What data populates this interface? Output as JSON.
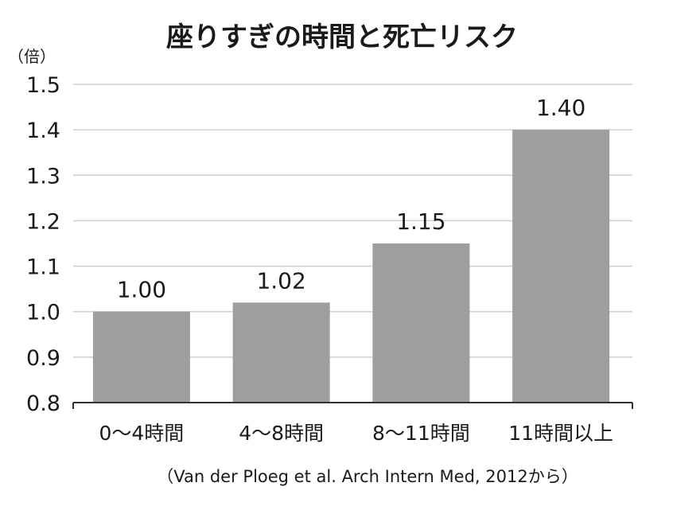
{
  "chart_data": {
    "type": "bar",
    "title": "座りすぎの時間と死亡リスク",
    "unit_label": "（倍）",
    "categories": [
      "0～4時間",
      "4～8時間",
      "8～11時間",
      "11時間以上"
    ],
    "values": [
      1.0,
      1.02,
      1.15,
      1.4
    ],
    "value_labels": [
      "1.00",
      "1.02",
      "1.15",
      "1.40"
    ],
    "ylim": [
      0.8,
      1.5
    ],
    "yticks": [
      "0.8",
      "0.9",
      "1.0",
      "1.1",
      "1.2",
      "1.3",
      "1.4",
      "1.5"
    ],
    "grid": true,
    "source": "（Van der Ploeg et al. Arch Intern Med, 2012から）",
    "colors": {
      "bar": "#9d9e9d",
      "grid": "#cfcfcf",
      "axis": "#333333"
    }
  }
}
